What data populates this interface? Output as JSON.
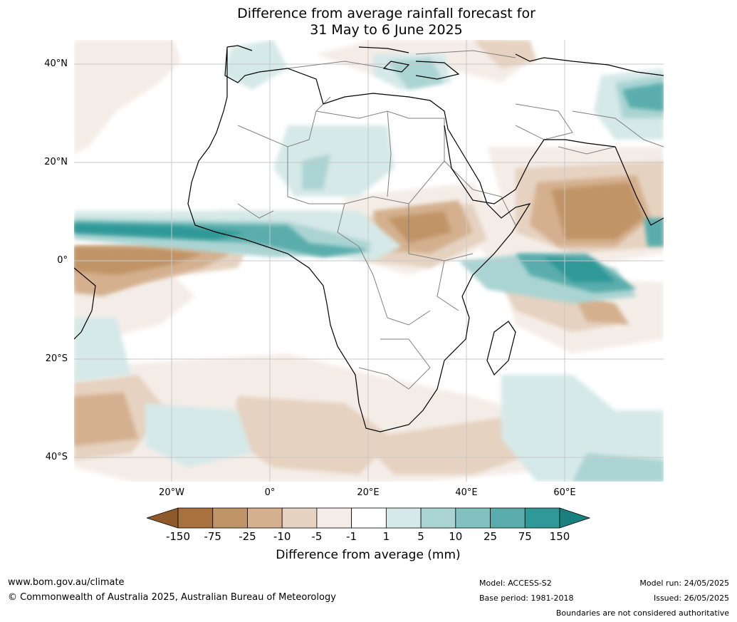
{
  "title": {
    "line1": "Difference from average rainfall forecast for",
    "line2": "31 May to 6 June 2025"
  },
  "map": {
    "region": "Africa",
    "latitude_labels": [
      "40°N",
      "20°N",
      "0°",
      "20°S",
      "40°S"
    ],
    "longitude_labels": [
      "20°W",
      "0°",
      "20°E",
      "40°E",
      "60°E"
    ],
    "colors": {
      "dry_extreme": "#a8723e",
      "dry_strong": "#c19467",
      "dry_moderate": "#d4b08e",
      "dry_weak": "#e6d2c0",
      "dry_slight": "#f4ede7",
      "neutral": "#ffffff",
      "wet_slight": "#d5e9e8",
      "wet_weak": "#aad4d3",
      "wet_moderate": "#82c1c0",
      "wet_strong": "#5aadac",
      "wet_extreme": "#2e9998",
      "coastline": "#000000",
      "borders": "#808080",
      "grid": "#c8c8c8"
    }
  },
  "legend": {
    "ticks": [
      "-150",
      "-75",
      "-25",
      "-10",
      "-5",
      "-1",
      "1",
      "5",
      "10",
      "25",
      "75",
      "150"
    ],
    "label": "Difference from average (mm)",
    "colors": [
      "#a8723e",
      "#c19467",
      "#d4b08e",
      "#e6d2c0",
      "#f4ede7",
      "#ffffff",
      "#d5e9e8",
      "#aad4d3",
      "#82c1c0",
      "#5aadac",
      "#2e9998"
    ],
    "low_extend_color": "#8e5a2a",
    "high_extend_color": "#1a807f"
  },
  "footer": {
    "website": "www.bom.gov.au/climate",
    "copyright": "© Commonwealth of Australia 2025, Australian Bureau of Meteorology",
    "model": "Model: ACCESS-S2",
    "base_period": "Base period: 1981-2018",
    "model_run": "Model run: 24/05/2025",
    "issued": "Issued: 26/05/2025",
    "disclaimer": "Boundaries are not considered authoritative"
  }
}
